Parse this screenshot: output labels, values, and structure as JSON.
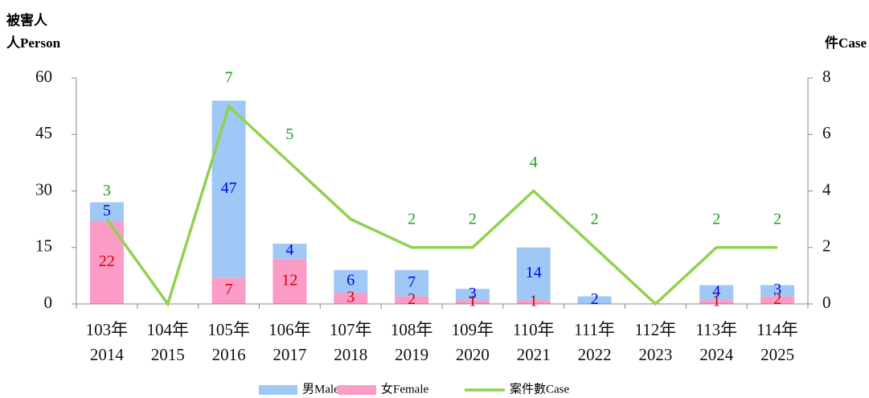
{
  "chart_data": {
    "type": "bar-line",
    "y_label": [
      "被害人",
      "人Person"
    ],
    "y2_label": "件Case",
    "categories": [
      [
        "103年",
        "2014"
      ],
      [
        "104年",
        "2015"
      ],
      [
        "105年",
        "2016"
      ],
      [
        "106年",
        "2017"
      ],
      [
        "107年",
        "2018"
      ],
      [
        "108年",
        "2019"
      ],
      [
        "109年",
        "2020"
      ],
      [
        "110年",
        "2021"
      ],
      [
        "111年",
        "2022"
      ],
      [
        "112年",
        "2023"
      ],
      [
        "113年",
        "2024"
      ],
      [
        "114年",
        "2025"
      ]
    ],
    "series": [
      {
        "name": "男Male",
        "color": "#9fc8f6",
        "label_color": "#0000ee",
        "values": [
          5,
          0,
          47,
          4,
          6,
          7,
          3,
          14,
          2,
          0,
          4,
          3
        ],
        "value_labels": [
          "5",
          null,
          "47",
          "4",
          "6",
          "7",
          "3",
          "14",
          "2",
          null,
          "4",
          "3"
        ]
      },
      {
        "name": "女Female",
        "color": "#fb9cc6",
        "label_color": "#d00000",
        "values": [
          22,
          0,
          7,
          12,
          3,
          2,
          1,
          1,
          0,
          0,
          1,
          2
        ],
        "value_labels": [
          "22",
          null,
          "7",
          "12",
          "3",
          "2",
          "1",
          "1",
          null,
          null,
          "1",
          "2"
        ]
      },
      {
        "name": "案件數Case",
        "color": "#92d050",
        "label_color": "#1aa01a",
        "axis": "y2",
        "values": [
          3,
          0,
          7,
          5,
          3,
          2,
          2,
          4,
          2,
          0,
          2,
          2
        ],
        "value_labels": [
          "3",
          null,
          "7",
          "5",
          null,
          "2",
          "2",
          "4",
          "2",
          null,
          "2",
          "2"
        ]
      }
    ],
    "ylim": [
      0,
      60
    ],
    "yticks": [
      0,
      15,
      30,
      45,
      60
    ],
    "y2lim": [
      0,
      8
    ],
    "y2ticks": [
      0,
      2,
      4,
      6,
      8
    ]
  }
}
